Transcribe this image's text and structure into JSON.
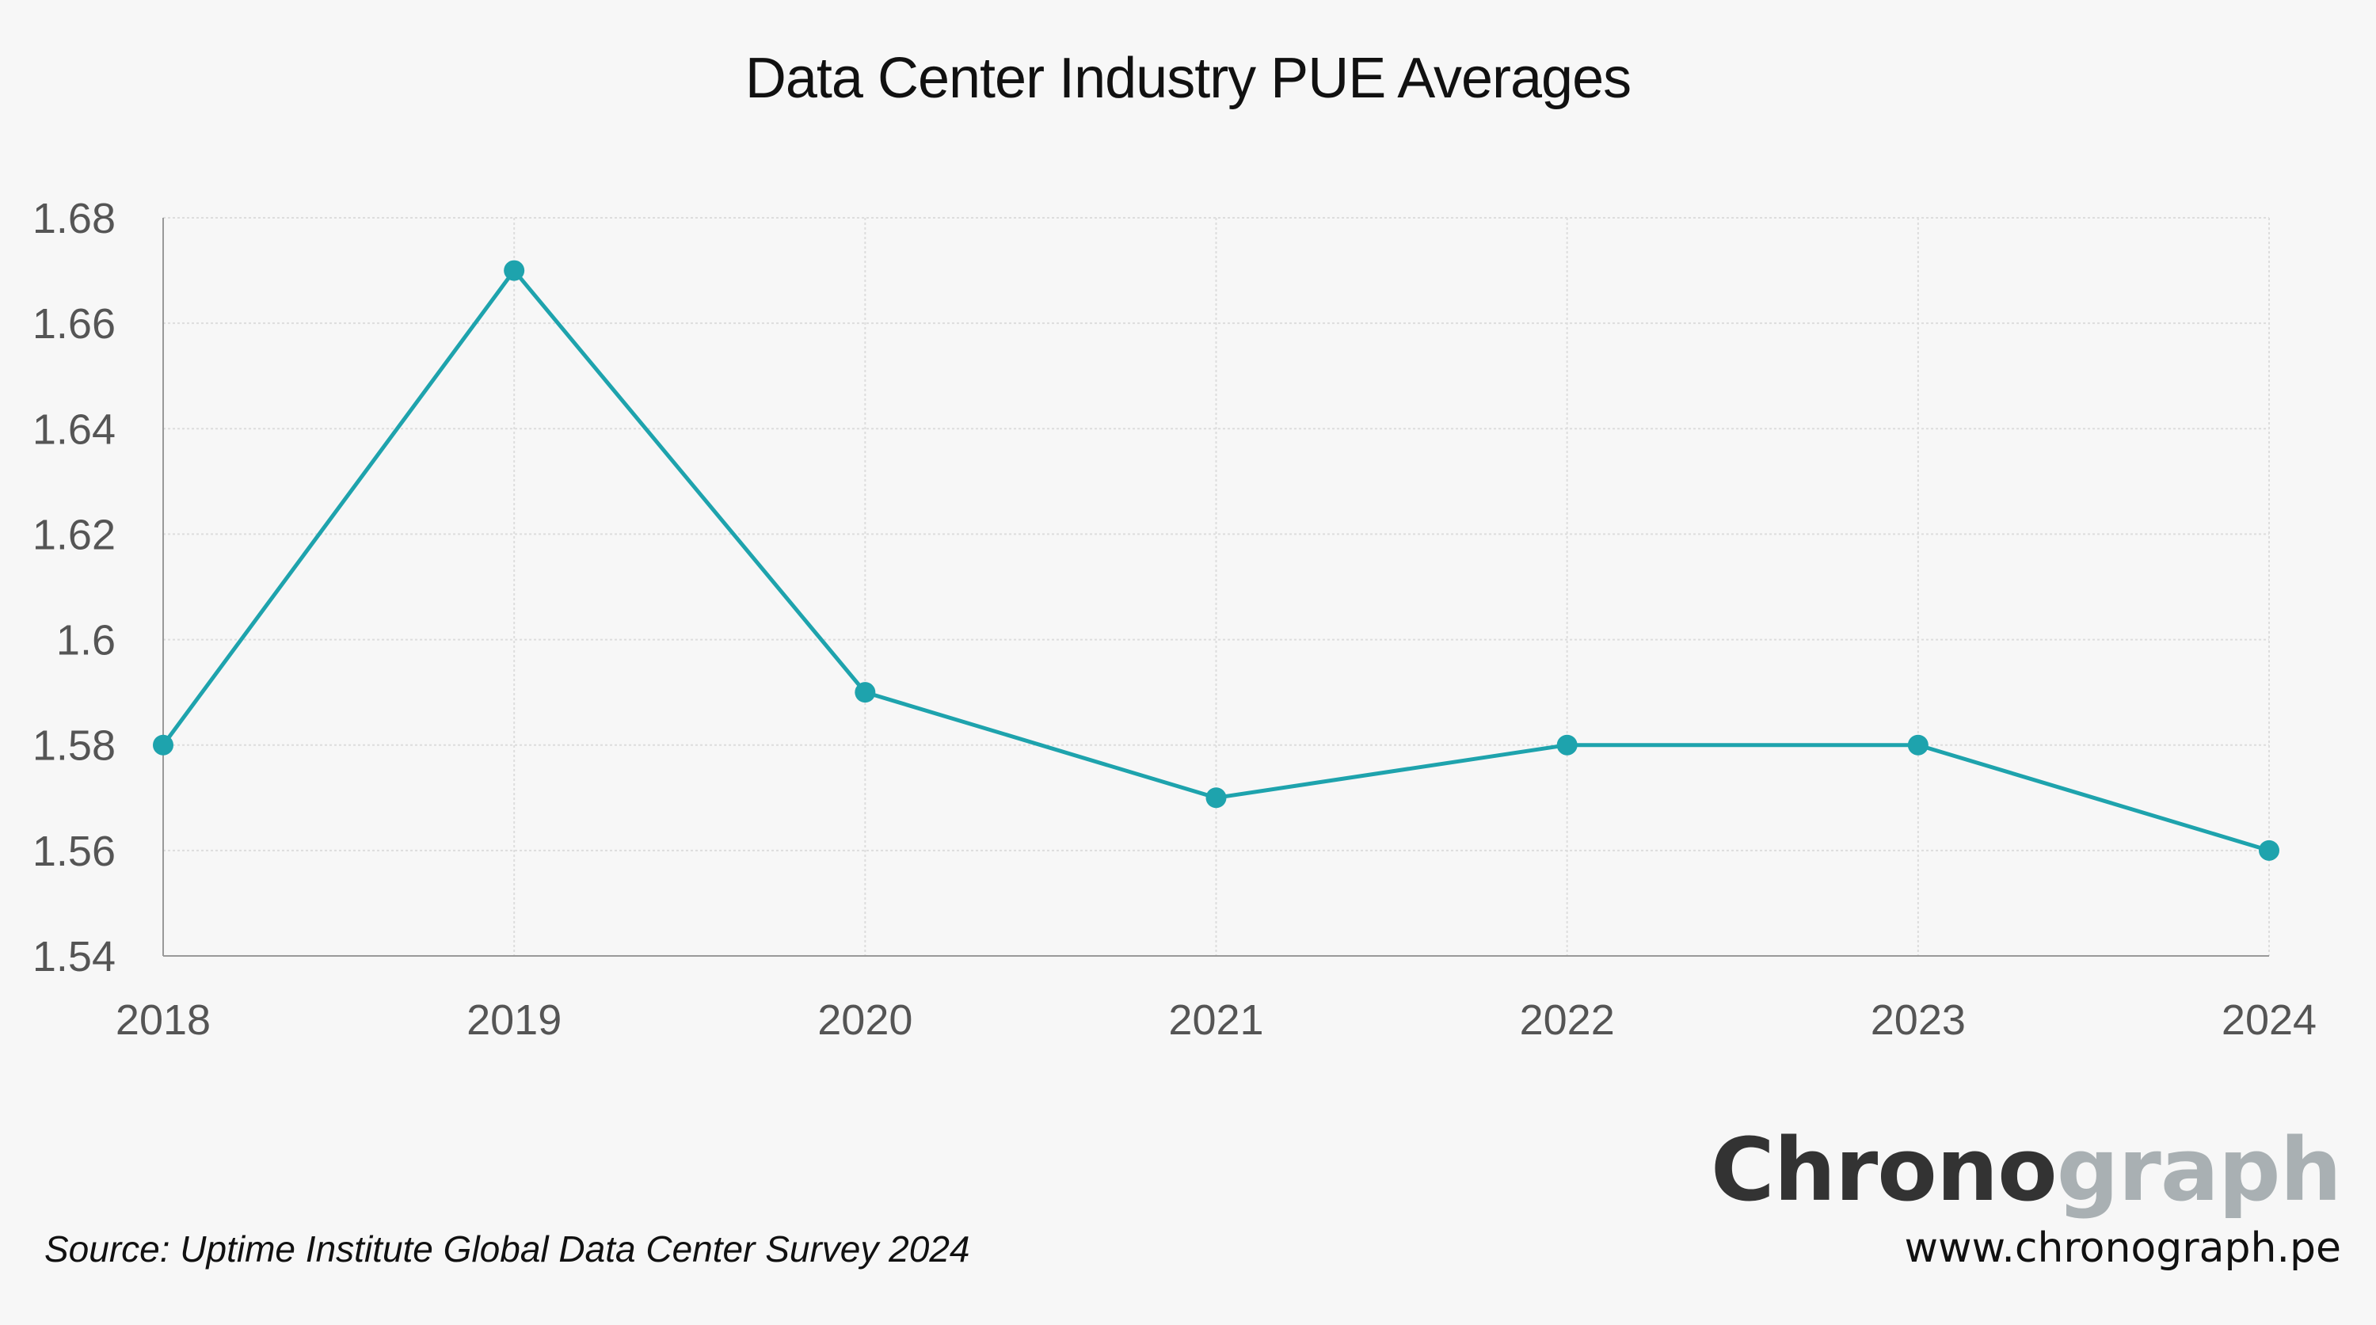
{
  "chart_data": {
    "type": "line",
    "title": "Data Center Industry PUE Averages",
    "xlabel": "",
    "ylabel": "",
    "categories": [
      "2018",
      "2019",
      "2020",
      "2021",
      "2022",
      "2023",
      "2024"
    ],
    "series": [
      {
        "values": [
          1.58,
          1.67,
          1.59,
          1.57,
          1.58,
          1.58,
          1.56
        ],
        "color": "#1ea3ad"
      }
    ],
    "ylim": [
      1.54,
      1.68
    ],
    "yticks": [
      "1.54",
      "1.56",
      "1.58",
      "1.6",
      "1.62",
      "1.64",
      "1.66",
      "1.68"
    ],
    "grid": true,
    "legend": "none"
  },
  "footer": {
    "source": "Source: Uptime Institute Global Data Center Survey 2024",
    "logo_part1": "Chrono",
    "logo_part2": "graph",
    "website": "www.chronograph.pe"
  },
  "colors": {
    "line": "#1ea3ad",
    "logo_dark": "#333333",
    "logo_light": "#a9b0b3",
    "grid": "#dddddd",
    "axis": "#999999"
  }
}
